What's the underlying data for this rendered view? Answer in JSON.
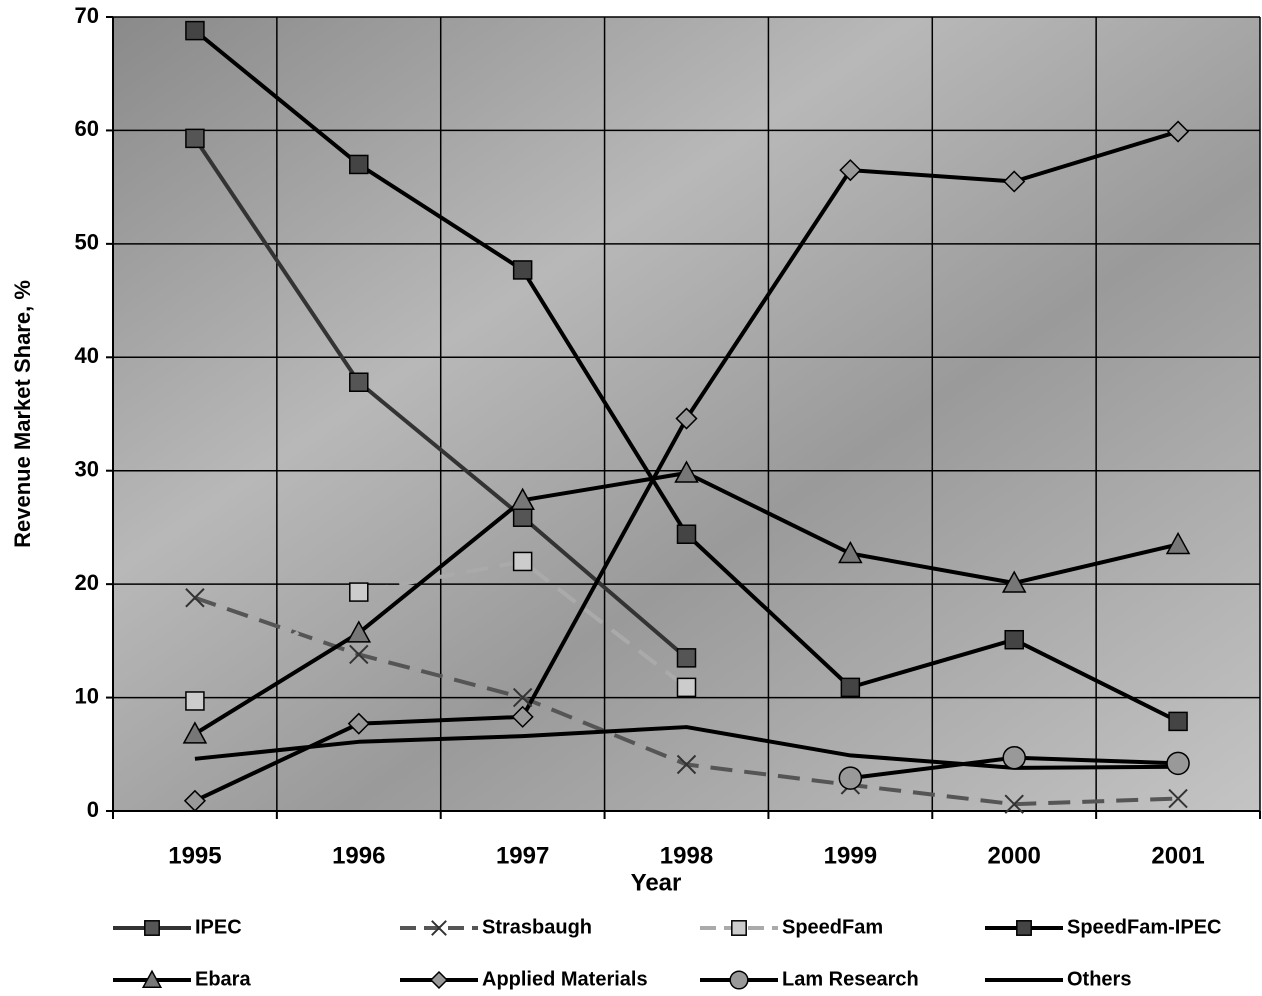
{
  "chart_data": {
    "type": "line",
    "x_label": "Year",
    "y_label": "Revenue Market Share, %",
    "categories": [
      "1995",
      "1996",
      "1997",
      "1998",
      "1999",
      "2000",
      "2001"
    ],
    "ylim": [
      0,
      70
    ],
    "yticks": [
      0,
      10,
      20,
      30,
      40,
      50,
      60,
      70
    ],
    "grid": true,
    "legend": "bottom",
    "series": [
      {
        "name": "IPEC",
        "color": "#333333",
        "marker": "square",
        "marker_color": "#555555",
        "dashed": false,
        "values": [
          59.3,
          37.8,
          25.9,
          13.5,
          null,
          null,
          null
        ]
      },
      {
        "name": "Strasbaugh",
        "color": "#555555",
        "marker": "x",
        "marker_color": "#333333",
        "dashed": true,
        "values": [
          18.8,
          13.8,
          10.0,
          4.1,
          2.3,
          0.6,
          1.1
        ]
      },
      {
        "name": "SpeedFam",
        "color": "#aaaaaa",
        "marker": "square",
        "marker_color": "#cccccc",
        "dashed": true,
        "values": [
          9.7,
          19.3,
          22.0,
          10.9,
          null,
          null,
          null
        ]
      },
      {
        "name": "SpeedFam-IPEC",
        "color": "#000000",
        "marker": "square",
        "marker_color": "#444444",
        "dashed": false,
        "values": [
          68.8,
          57.0,
          47.7,
          24.4,
          10.9,
          15.1,
          7.9
        ]
      },
      {
        "name": "Ebara",
        "color": "#000000",
        "marker": "triangle",
        "marker_color": "#777777",
        "dashed": false,
        "values": [
          6.8,
          15.7,
          27.4,
          29.8,
          22.7,
          20.1,
          23.5
        ]
      },
      {
        "name": "Applied Materials",
        "color": "#000000",
        "marker": "diamond",
        "marker_color": "#999999",
        "dashed": false,
        "values": [
          0.9,
          7.7,
          8.3,
          34.6,
          56.5,
          55.5,
          59.9
        ]
      },
      {
        "name": "Lam Research",
        "color": "#000000",
        "marker": "circle",
        "marker_color": "#999999",
        "dashed": false,
        "values": [
          null,
          null,
          null,
          null,
          2.9,
          4.7,
          4.2
        ]
      },
      {
        "name": "Others",
        "color": "#000000",
        "marker": "none",
        "marker_color": "#000000",
        "dashed": false,
        "values": [
          4.6,
          6.1,
          6.6,
          7.4,
          4.9,
          3.8,
          3.9
        ]
      }
    ]
  }
}
